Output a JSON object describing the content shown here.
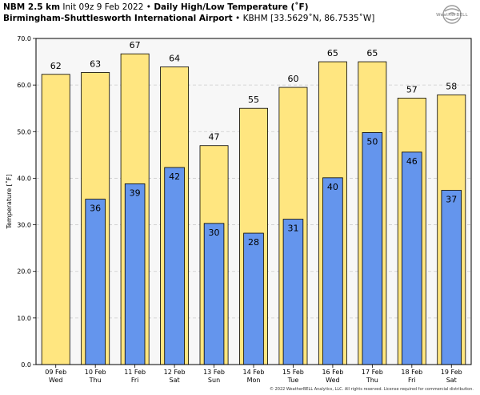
{
  "header": {
    "model": "NBM 2.5 km",
    "init": "Init 09z 9 Feb 2022",
    "bullet": "•",
    "title": "Daily High/Low Temperature (˚F)",
    "station_name": "Birmingham-Shuttlesworth International Airport",
    "station_info": "KBHM [33.5629˚N, 86.7535˚W]"
  },
  "logo": {
    "text": "WeatherBELL"
  },
  "copyright": "© 2022 WeatherBELL Analytics, LLC. All rights reserved. License required for commercial distribution.",
  "colors": {
    "high": "#ffe680",
    "low": "#6495ed",
    "grid": "#cccccc",
    "axes_bg": "#f7f7f7"
  },
  "chart_data": {
    "type": "bar",
    "title": "Daily High/Low Temperature (˚F)",
    "xlabel": "",
    "ylabel": "Temperature [˚F]",
    "ylim": [
      0,
      70
    ],
    "yticks": [
      "0.0",
      "10.0",
      "20.0",
      "30.0",
      "40.0",
      "50.0",
      "60.0",
      "70.0"
    ],
    "ytick_values": [
      0,
      10,
      20,
      30,
      40,
      50,
      60,
      70
    ],
    "categories": [
      "09 Feb",
      "10 Feb",
      "11 Feb",
      "12 Feb",
      "13 Feb",
      "14 Feb",
      "15 Feb",
      "16 Feb",
      "17 Feb",
      "18 Feb",
      "19 Feb"
    ],
    "days": [
      "Wed",
      "Thu",
      "Fri",
      "Sat",
      "Sun",
      "Mon",
      "Tue",
      "Wed",
      "Thu",
      "Fri",
      "Sat"
    ],
    "series": [
      {
        "name": "High",
        "values": [
          62,
          63,
          67,
          64,
          47,
          55,
          60,
          65,
          65,
          57,
          58
        ]
      },
      {
        "name": "Low",
        "values": [
          null,
          36,
          39,
          42,
          30,
          28,
          31,
          40,
          50,
          46,
          37
        ]
      }
    ],
    "precise_values": {
      "high": [
        62.3,
        62.7,
        66.7,
        63.9,
        47.0,
        55.0,
        59.5,
        65.0,
        65.0,
        57.2,
        57.9
      ],
      "low": [
        null,
        35.5,
        38.8,
        42.3,
        30.3,
        28.2,
        31.2,
        40.1,
        49.8,
        45.6,
        37.4
      ]
    }
  }
}
